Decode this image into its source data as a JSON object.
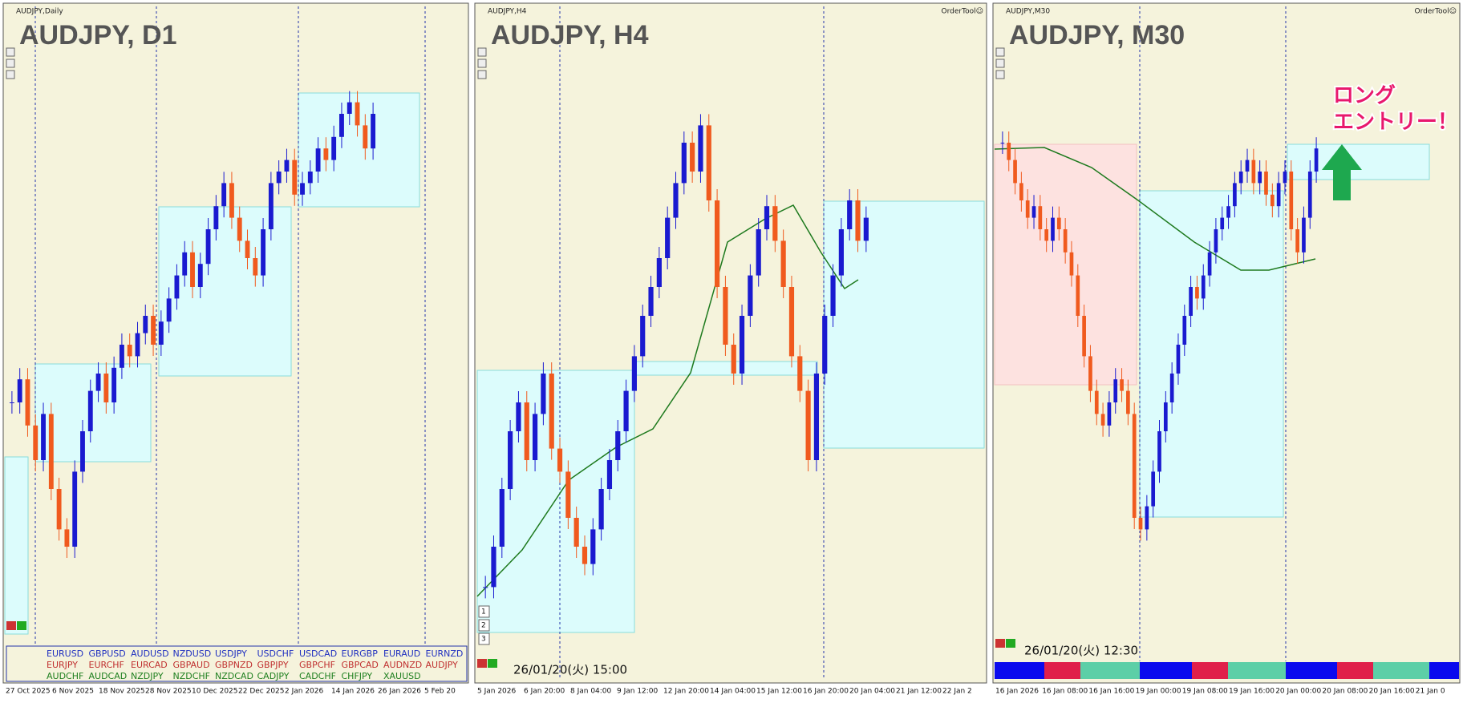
{
  "panels": [
    {
      "symbol_label": "AUDJPY,Daily",
      "title": "AUDJPY, D1",
      "x_labels": [
        "27 Oct 2025",
        "6 Nov 2025",
        "18 Nov 2025",
        "28 Nov 2025",
        "10 Dec 2025",
        "22 Dec 2025",
        "2 Jan 2026",
        "14 Jan 2026",
        "26 Jan 2026",
        "5 Feb 20"
      ],
      "closes": [
        40,
        44,
        36,
        30,
        38,
        25,
        18,
        15,
        28,
        35,
        42,
        45,
        40,
        46,
        50,
        48,
        52,
        55,
        50,
        54,
        58,
        62,
        66,
        60,
        64,
        70,
        74,
        78,
        72,
        68,
        65,
        62,
        70,
        78,
        80,
        82,
        76,
        78,
        80,
        84,
        82,
        86,
        90,
        92,
        88,
        84,
        90
      ]
    },
    {
      "symbol_label": "AUDJPY,H4",
      "title": "AUDJPY, H4",
      "order_tool": "OrderTool☺",
      "timestamp": "26/01/20(火) 15:00",
      "buttons": [
        "1",
        "2",
        "3"
      ],
      "x_labels": [
        "5 Jan 2026",
        "6 Jan 20:00",
        "8 Jan 04:00",
        "9 Jan 12:00",
        "12 Jan 20:00",
        "14 Jan 04:00",
        "15 Jan 12:00",
        "16 Jan 20:00",
        "20 Jan 04:00",
        "21 Jan 12:00",
        "22 Jan 2"
      ],
      "closes": [
        8,
        15,
        25,
        35,
        40,
        30,
        38,
        45,
        32,
        28,
        20,
        15,
        12,
        18,
        25,
        30,
        35,
        42,
        48,
        55,
        60,
        65,
        72,
        78,
        85,
        80,
        88,
        75,
        60,
        50,
        45,
        55,
        62,
        70,
        74,
        68,
        60,
        48,
        42,
        30,
        45,
        55,
        62,
        70,
        75,
        68,
        72
      ]
    },
    {
      "symbol_label": "AUDJPY,M30",
      "title": "AUDJPY, M30",
      "order_tool": "OrderTool☺",
      "timestamp": "26/01/20(火) 12:30",
      "x_labels": [
        "16 Jan 2026",
        "16 Jan 08:00",
        "16 Jan 16:00",
        "19 Jan 00:00",
        "19 Jan 08:00",
        "19 Jan 16:00",
        "20 Jan 00:00",
        "20 Jan 08:00",
        "20 Jan 16:00",
        "21 Jan 0"
      ],
      "closes": [
        85,
        82,
        78,
        75,
        72,
        74,
        70,
        68,
        72,
        70,
        66,
        62,
        55,
        48,
        42,
        38,
        36,
        40,
        44,
        42,
        38,
        20,
        18,
        22,
        28,
        35,
        40,
        45,
        50,
        55,
        60,
        58,
        62,
        66,
        70,
        72,
        74,
        78,
        80,
        82,
        78,
        80,
        76,
        74,
        78,
        80,
        70,
        66,
        72,
        80,
        84
      ]
    }
  ],
  "symbol_grid": {
    "rows": [
      [
        "EURUSD",
        "GBPUSD",
        "AUDUSD",
        "NZDUSD",
        "USDJPY",
        "USDCHF",
        "USDCAD",
        "EURGBP",
        "EURAUD",
        "EURNZD"
      ],
      [
        "EURJPY",
        "EURCHF",
        "EURCAD",
        "GBPAUD",
        "GBPNZD",
        "GBPJPY",
        "GBPCHF",
        "GBPCAD",
        "AUDNZD",
        "AUDJPY"
      ],
      [
        "AUDCHF",
        "AUDCAD",
        "NZDJPY",
        "NZDCHF",
        "NZDCAD",
        "CADJPY",
        "CADCHF",
        "CHFJPY",
        "XAUUSD"
      ]
    ]
  },
  "annotation": {
    "line1": "ロング",
    "line2": "エントリー！"
  }
}
